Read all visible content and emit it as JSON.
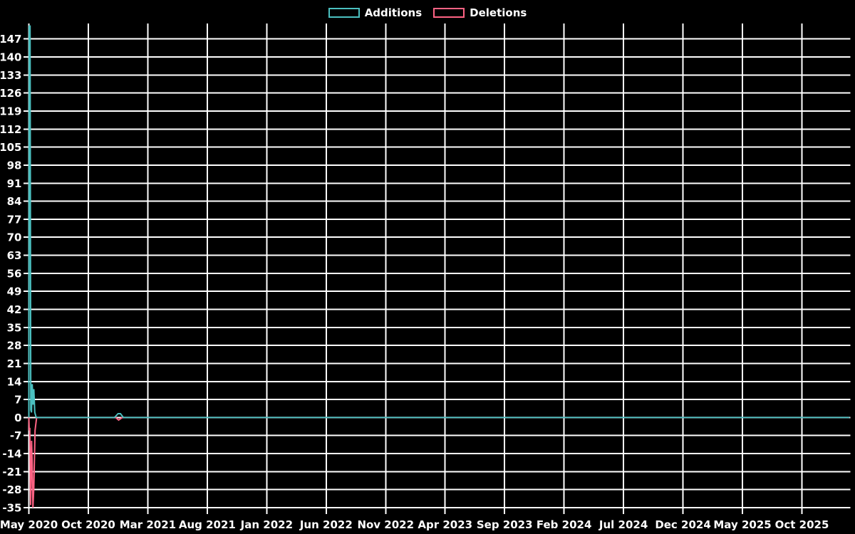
{
  "page": {
    "background": "#000000",
    "text_color": "#ffffff"
  },
  "legend": {
    "items": [
      {
        "label": "Additions",
        "color": "#4bc0c0"
      },
      {
        "label": "Deletions",
        "color": "#ff6384"
      }
    ]
  },
  "chart_data": {
    "type": "line",
    "title": "",
    "legend_position": "top-center",
    "background": "#000000",
    "grid_color": "#ffffff",
    "text_color": "#ffffff",
    "grid": true,
    "x_axis": {
      "label": "",
      "x_unit": "months since May 2020 (weekly samples)",
      "tick_labels": [
        "May 2020",
        "Oct 2020",
        "Mar 2021",
        "Aug 2021",
        "Jan 2022",
        "Jun 2022",
        "Nov 2022",
        "Apr 2023",
        "Sep 2023",
        "Feb 2024",
        "Jul 2024",
        "Dec 2024",
        "May 2025",
        "Oct 2025"
      ],
      "tick_months": [
        0,
        5,
        10,
        15,
        20,
        25,
        30,
        35,
        40,
        45,
        50,
        55,
        60,
        65
      ],
      "range_months": [
        0,
        69
      ]
    },
    "y_axis": {
      "label": "",
      "ticks": [
        147,
        140,
        133,
        126,
        119,
        112,
        105,
        98,
        91,
        84,
        77,
        70,
        63,
        56,
        49,
        42,
        35,
        28,
        21,
        14,
        7,
        0,
        -7,
        -14,
        -21,
        -28,
        -35
      ],
      "range": [
        -35,
        153
      ]
    },
    "series": [
      {
        "name": "Additions",
        "color": "#4bc0c0",
        "points": [
          [
            0,
            0
          ],
          [
            0.03,
            152
          ],
          [
            0.1,
            152
          ],
          [
            0.16,
            3
          ],
          [
            0.22,
            2
          ],
          [
            0.28,
            13
          ],
          [
            0.36,
            5
          ],
          [
            0.42,
            11
          ],
          [
            0.5,
            2
          ],
          [
            0.62,
            0
          ],
          [
            7.2,
            0
          ],
          [
            7.5,
            1.5
          ],
          [
            7.7,
            1.5
          ],
          [
            7.95,
            0
          ],
          [
            69,
            0
          ]
        ]
      },
      {
        "name": "Deletions",
        "color": "#ff6384",
        "points": [
          [
            0,
            0
          ],
          [
            0.03,
            -5
          ],
          [
            0.08,
            -4
          ],
          [
            0.15,
            -34
          ],
          [
            0.23,
            -9
          ],
          [
            0.28,
            -18
          ],
          [
            0.34,
            -35
          ],
          [
            0.42,
            -27
          ],
          [
            0.52,
            -5
          ],
          [
            0.65,
            0
          ],
          [
            7.3,
            0
          ],
          [
            7.55,
            -1
          ],
          [
            7.85,
            0
          ],
          [
            69,
            0
          ]
        ]
      }
    ]
  }
}
